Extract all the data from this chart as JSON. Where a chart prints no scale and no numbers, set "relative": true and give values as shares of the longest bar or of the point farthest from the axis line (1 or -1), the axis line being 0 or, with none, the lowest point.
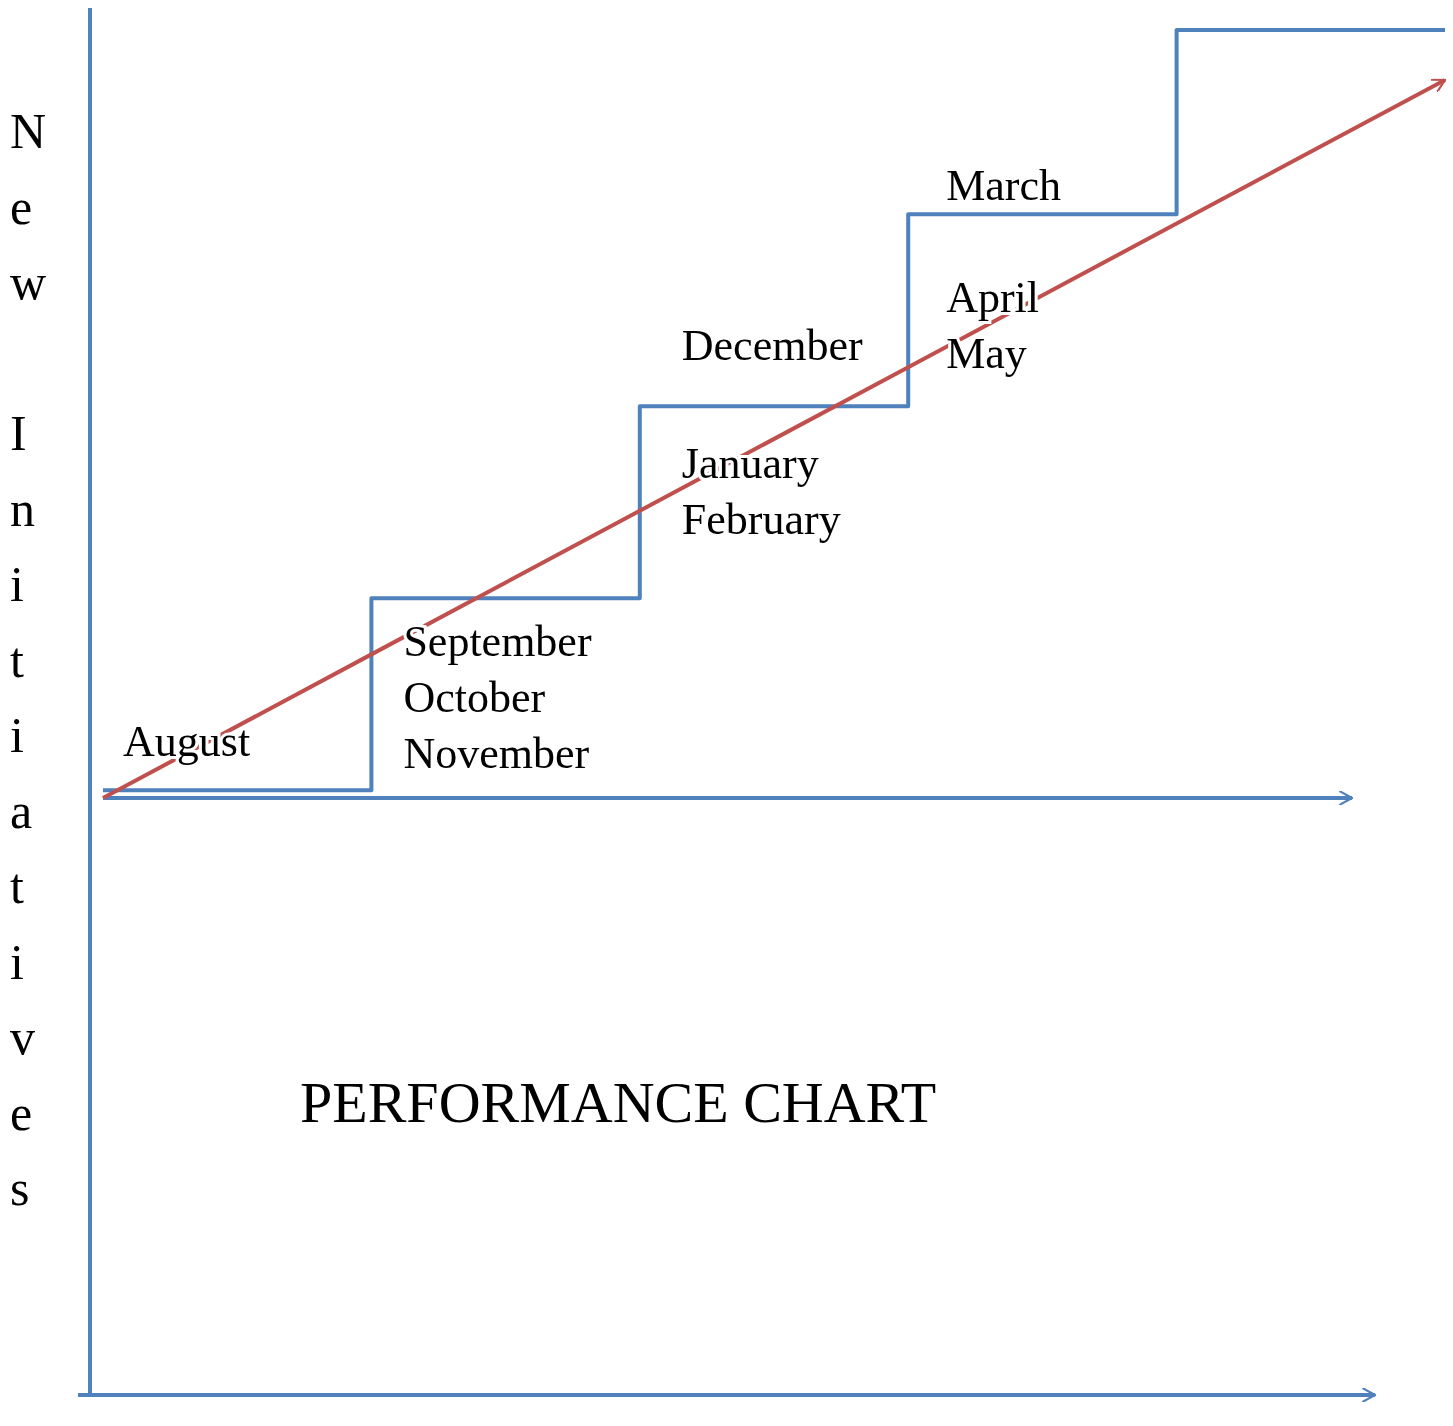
{
  "chart_data": {
    "type": "step",
    "title": "PERFORMANCE CHART",
    "ylabel": "New Initiatives",
    "relative": true,
    "categories": [
      null,
      null,
      null,
      null,
      null,
      null
    ],
    "series": [
      {
        "color": "#4f81bd",
        "values": [
          0.01,
          0.26,
          0.51,
          0.76,
          1.0,
          1.0
        ]
      },
      {
        "type": "line",
        "color": "#c0504d",
        "values": [
          0,
          0.187,
          0.374,
          0.561,
          0.748,
          0.935
        ]
      }
    ],
    "annotations": [
      "August",
      "September\nOctober\nNovember",
      "December",
      "January\nFebruary",
      "March",
      "April\nMay"
    ]
  }
}
